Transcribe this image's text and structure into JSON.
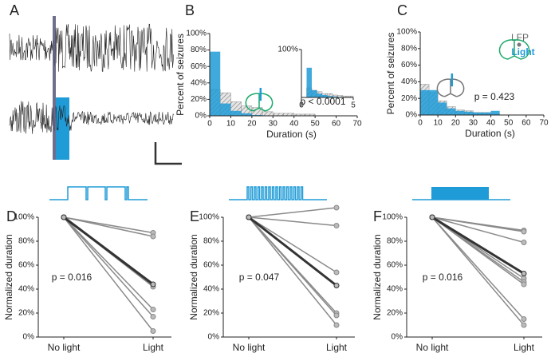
{
  "panel_labels": [
    "A",
    "B",
    "C",
    "D",
    "E",
    "F"
  ],
  "chart_data": [
    {
      "type": "histogram",
      "ylabel": "Percent of seizures",
      "xlabel": "Duration (s)",
      "bins": [
        0,
        5,
        10,
        15,
        20,
        25,
        30,
        35,
        40,
        45,
        50
      ],
      "series": [
        {
          "color": "#8c8c8c",
          "hatch": true,
          "values": [
            32,
            28,
            17,
            12,
            10,
            5,
            3,
            3,
            2,
            2
          ]
        },
        {
          "color": "#1f9bd7",
          "hatch": false,
          "values": [
            78,
            15,
            6,
            3,
            1,
            0,
            0,
            0,
            0,
            0
          ]
        }
      ],
      "xlim": [
        0,
        70
      ],
      "xticks": [
        0,
        10,
        20,
        30,
        40,
        50,
        60,
        70
      ],
      "ylim": [
        0,
        100
      ],
      "yticks": [
        {
          "value": 0,
          "label": "0%"
        },
        {
          "value": 20,
          "label": "20%"
        },
        {
          "value": 40,
          "label": "40%"
        },
        {
          "value": 60,
          "label": "60%"
        },
        {
          "value": 80,
          "label": "80%"
        },
        {
          "value": 100,
          "label": "100%"
        }
      ],
      "annotations": [
        "p < 0.0001"
      ]
    },
    {
      "type": "histogram",
      "bins": [
        0,
        0.5,
        1,
        1.5,
        2,
        2.5,
        3,
        3.5,
        4,
        4.5,
        5
      ],
      "series": [
        {
          "color": "#8c8c8c",
          "hatch": true,
          "values": [
            0,
            20,
            15,
            12,
            8,
            8,
            5,
            4,
            3,
            3
          ]
        },
        {
          "color": "#1f9bd7",
          "hatch": false,
          "values": [
            0,
            62,
            15,
            8,
            5,
            3,
            2,
            1,
            0,
            0
          ]
        }
      ],
      "xlim": [
        0,
        5
      ],
      "xticks": [
        0,
        5
      ],
      "ylim": [
        0,
        100
      ],
      "yticks": [
        {
          "value": 100,
          "label": "100%"
        }
      ]
    },
    {
      "type": "histogram",
      "ylabel": "Percent of seizures",
      "xlabel": "Duration (s)",
      "bins": [
        0,
        5,
        10,
        15,
        20,
        25,
        30,
        35,
        40,
        45
      ],
      "series": [
        {
          "color": "#8c8c8c",
          "hatch": true,
          "values": [
            37,
            27,
            17,
            10,
            6,
            5,
            3,
            3,
            1
          ]
        },
        {
          "color": "#1f9bd7",
          "hatch": false,
          "values": [
            30,
            30,
            15,
            8,
            5,
            4,
            3,
            3,
            5
          ]
        }
      ],
      "xlim": [
        0,
        70
      ],
      "xticks": [
        0,
        10,
        20,
        30,
        40,
        50,
        60,
        70
      ],
      "ylim": [
        0,
        100
      ],
      "yticks": [
        {
          "value": 0,
          "label": "0%"
        },
        {
          "value": 20,
          "label": "20%"
        },
        {
          "value": 40,
          "label": "40%"
        },
        {
          "value": 60,
          "label": "60%"
        },
        {
          "value": 80,
          "label": "80%"
        },
        {
          "value": 100,
          "label": "100%"
        }
      ],
      "annotations": [
        "p = 0.423",
        "LFP",
        "Light"
      ]
    },
    {
      "type": "line",
      "ylabel": "Normalized duration",
      "categories": [
        "No light",
        "Light"
      ],
      "series": [
        {
          "color": "#8a8a8a",
          "values": [
            100,
            87
          ]
        },
        {
          "color": "#8a8a8a",
          "values": [
            100,
            84
          ]
        },
        {
          "color": "#8a8a8a",
          "values": [
            100,
            42
          ]
        },
        {
          "color": "#8a8a8a",
          "values": [
            100,
            23
          ]
        },
        {
          "color": "#8a8a8a",
          "values": [
            100,
            17
          ]
        },
        {
          "color": "#8a8a8a",
          "values": [
            100,
            5
          ]
        },
        {
          "color": "#333333",
          "values": [
            100,
            44
          ]
        }
      ],
      "ylim": [
        0,
        100
      ],
      "yticks": [
        {
          "value": 0,
          "label": "0%"
        },
        {
          "value": 20,
          "label": "20%"
        },
        {
          "value": 40,
          "label": "40%"
        },
        {
          "value": 60,
          "label": "60%"
        },
        {
          "value": 80,
          "label": "80%"
        },
        {
          "value": 100,
          "label": "100%"
        }
      ],
      "annotations": [
        "p = 0.016"
      ]
    },
    {
      "type": "line",
      "ylabel": "Normalized duration",
      "categories": [
        "No light",
        "Light"
      ],
      "series": [
        {
          "color": "#8a8a8a",
          "values": [
            100,
            108
          ]
        },
        {
          "color": "#8a8a8a",
          "values": [
            100,
            93
          ]
        },
        {
          "color": "#8a8a8a",
          "values": [
            100,
            54
          ]
        },
        {
          "color": "#8a8a8a",
          "values": [
            100,
            20
          ]
        },
        {
          "color": "#8a8a8a",
          "values": [
            100,
            18
          ]
        },
        {
          "color": "#8a8a8a",
          "values": [
            100,
            10
          ]
        },
        {
          "color": "#333333",
          "values": [
            100,
            43
          ]
        }
      ],
      "ylim": [
        0,
        100
      ],
      "yticks": [
        {
          "value": 0,
          "label": "0%"
        },
        {
          "value": 20,
          "label": "20%"
        },
        {
          "value": 40,
          "label": "40%"
        },
        {
          "value": 60,
          "label": "60%"
        },
        {
          "value": 80,
          "label": "80%"
        },
        {
          "value": 100,
          "label": "100%"
        }
      ],
      "annotations": [
        "p = 0.047"
      ]
    },
    {
      "type": "line",
      "ylabel": "Normalized duration",
      "categories": [
        "No light",
        "Light"
      ],
      "series": [
        {
          "color": "#8a8a8a",
          "values": [
            100,
            89
          ]
        },
        {
          "color": "#8a8a8a",
          "values": [
            100,
            88
          ]
        },
        {
          "color": "#8a8a8a",
          "values": [
            100,
            79
          ]
        },
        {
          "color": "#8a8a8a",
          "values": [
            100,
            49
          ]
        },
        {
          "color": "#8a8a8a",
          "values": [
            100,
            46
          ]
        },
        {
          "color": "#8a8a8a",
          "values": [
            100,
            44
          ]
        },
        {
          "color": "#8a8a8a",
          "values": [
            100,
            15
          ]
        },
        {
          "color": "#8a8a8a",
          "values": [
            100,
            10
          ]
        },
        {
          "color": "#333333",
          "values": [
            100,
            53
          ]
        }
      ],
      "ylim": [
        0,
        100
      ],
      "yticks": [
        {
          "value": 0,
          "label": "0%"
        },
        {
          "value": 20,
          "label": "20%"
        },
        {
          "value": 40,
          "label": "40%"
        },
        {
          "value": 60,
          "label": "60%"
        },
        {
          "value": 80,
          "label": "80%"
        },
        {
          "value": 100,
          "label": "100%"
        }
      ],
      "annotations": [
        "p = 0.016"
      ]
    }
  ]
}
